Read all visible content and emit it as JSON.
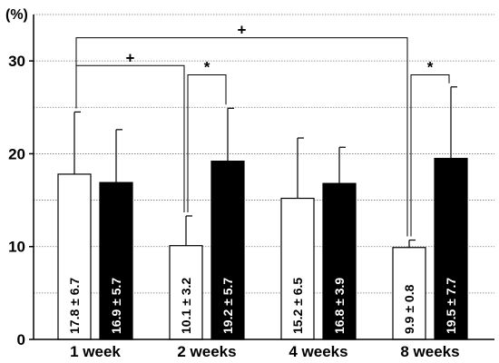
{
  "chart_data": {
    "type": "bar",
    "ylabel": "(%)",
    "ylim": [
      0,
      35
    ],
    "yticks": [
      0,
      10,
      20,
      30
    ],
    "grid": "horizontal dotted",
    "categories": [
      "1 week",
      "2 weeks",
      "4 weeks",
      "8 weeks"
    ],
    "series": [
      {
        "fill": "#ffffff",
        "values": [
          17.8,
          10.1,
          15.2,
          9.9
        ],
        "errors": [
          6.7,
          3.2,
          6.5,
          0.8
        ],
        "labels": [
          "17.8 ± 6.7",
          "10.1 ± 3.2",
          "15.2 ± 6.5",
          "9.9 ± 0.8"
        ]
      },
      {
        "fill": "#000000",
        "values": [
          16.9,
          19.2,
          16.8,
          19.5
        ],
        "errors": [
          5.7,
          5.7,
          3.9,
          7.7
        ],
        "labels": [
          "16.9 ± 5.7",
          "19.2 ± 5.7",
          "16.8 ± 3.9",
          "19.5 ± 7.7"
        ]
      }
    ],
    "annotations": [
      {
        "symbol": "+",
        "from": [
          0,
          0
        ],
        "to": [
          1,
          0
        ],
        "level": 29.5
      },
      {
        "symbol": "*",
        "from": [
          1,
          0
        ],
        "to": [
          1,
          1
        ],
        "level": 28.5
      },
      {
        "symbol": "+",
        "from": [
          0,
          0
        ],
        "to": [
          3,
          0
        ],
        "level": 32.5
      },
      {
        "symbol": "*",
        "from": [
          3,
          0
        ],
        "to": [
          3,
          1
        ],
        "level": 28.5
      }
    ]
  }
}
